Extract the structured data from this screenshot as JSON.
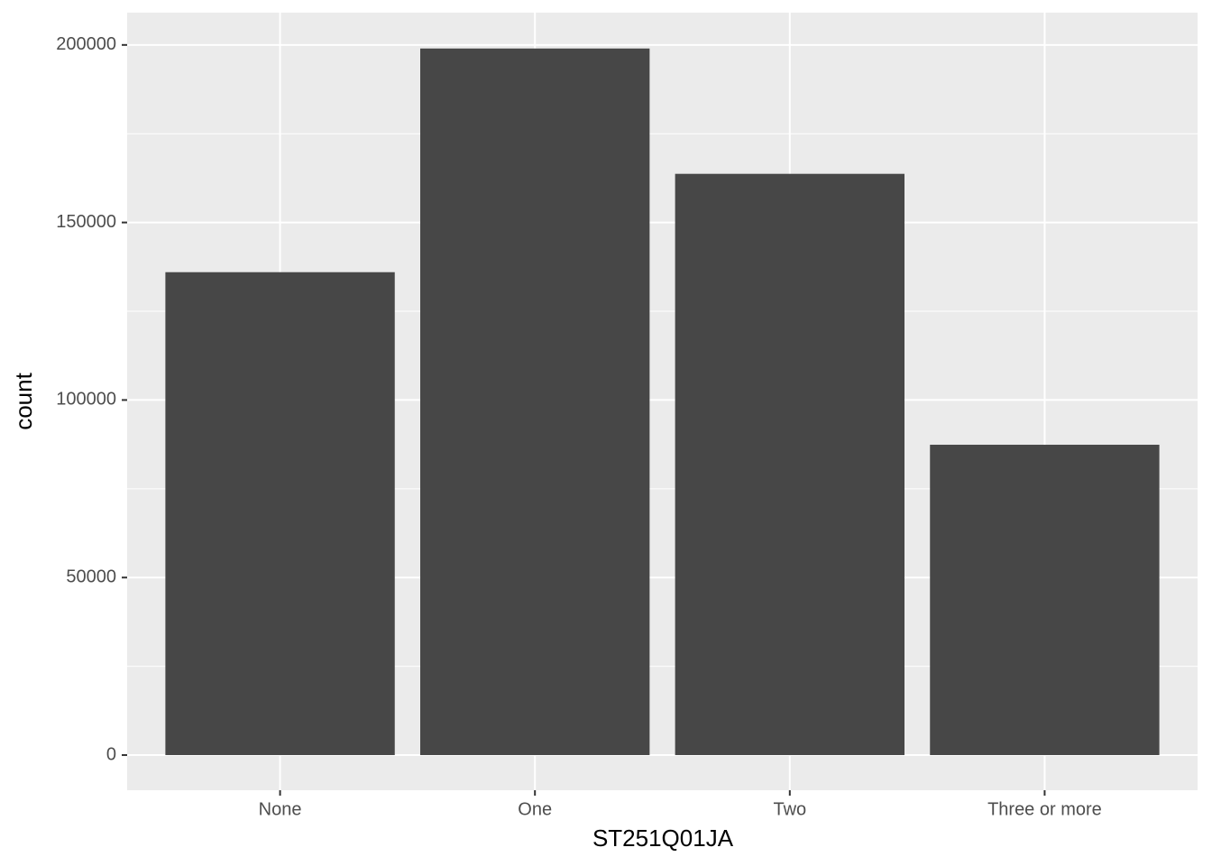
{
  "chart_data": {
    "type": "bar",
    "x_label": "ST251Q01JA",
    "y_label": "count",
    "categories": [
      "None",
      "One",
      "Two",
      "Three or more"
    ],
    "values": [
      136000,
      199000,
      163700,
      87400
    ],
    "color": "#474747",
    "ylim": [
      -9900,
      209100
    ],
    "yticks": [
      0,
      50000,
      100000,
      150000,
      200000
    ],
    "grid": true
  }
}
